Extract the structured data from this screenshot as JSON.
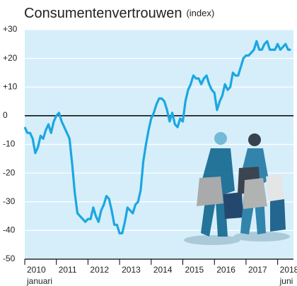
{
  "chart_data": {
    "type": "line",
    "title": "Consumentenvertrouwen",
    "subtitle": "(index)",
    "annotations": [
      "januari",
      "juni"
    ],
    "x": [
      2010,
      2010.083,
      2010.167,
      2010.25,
      2010.333,
      2010.417,
      2010.5,
      2010.583,
      2010.667,
      2010.75,
      2010.833,
      2010.917,
      2011,
      2011.083,
      2011.167,
      2011.25,
      2011.333,
      2011.417,
      2011.5,
      2011.583,
      2011.667,
      2011.75,
      2011.833,
      2011.917,
      2012,
      2012.083,
      2012.167,
      2012.25,
      2012.333,
      2012.417,
      2012.5,
      2012.583,
      2012.667,
      2012.75,
      2012.833,
      2012.917,
      2013,
      2013.083,
      2013.167,
      2013.25,
      2013.333,
      2013.417,
      2013.5,
      2013.583,
      2013.667,
      2013.75,
      2013.833,
      2013.917,
      2014,
      2014.083,
      2014.167,
      2014.25,
      2014.333,
      2014.417,
      2014.5,
      2014.583,
      2014.667,
      2014.75,
      2014.833,
      2014.917,
      2015,
      2015.083,
      2015.167,
      2015.25,
      2015.333,
      2015.417,
      2015.5,
      2015.583,
      2015.667,
      2015.75,
      2015.833,
      2015.917,
      2016,
      2016.083,
      2016.167,
      2016.25,
      2016.333,
      2016.417,
      2016.5,
      2016.583,
      2016.667,
      2016.75,
      2016.833,
      2016.917,
      2017,
      2017.083,
      2017.167,
      2017.25,
      2017.333,
      2017.417,
      2017.5,
      2017.583,
      2017.667,
      2017.75,
      2017.833,
      2017.917,
      2018,
      2018.083,
      2018.167,
      2018.25,
      2018.333,
      2018.417
    ],
    "series": [
      {
        "name": "Consumentenvertrouwen",
        "color": "#1ba7e1",
        "values": [
          -4,
          -6,
          -6,
          -8,
          -13,
          -11,
          -7,
          -8,
          -5,
          -3,
          -6,
          -2,
          0,
          1,
          -2,
          -4,
          -6,
          -8,
          -17,
          -27,
          -34,
          -35,
          -36,
          -37,
          -36,
          -36,
          -32,
          -35,
          -37,
          -33,
          -31,
          -28,
          -29,
          -33,
          -38,
          -38,
          -41,
          -41,
          -37,
          -32,
          -33,
          -34,
          -31,
          -30,
          -26,
          -16,
          -10,
          -5,
          -1,
          1,
          4,
          6,
          6,
          5,
          2,
          -2,
          1,
          -3,
          -4,
          -1,
          -2,
          5,
          9,
          11,
          14,
          13,
          13,
          11,
          13,
          14,
          11,
          9,
          8,
          2,
          5,
          7,
          11,
          9,
          10,
          15,
          14,
          14,
          17,
          20,
          21,
          21,
          22,
          23,
          26,
          23,
          23,
          25,
          26,
          23,
          23,
          23,
          25,
          23,
          24,
          25,
          23,
          23
        ]
      }
    ],
    "xlim": [
      2010,
      2018.5
    ],
    "xticks": [
      2010,
      2011,
      2012,
      2013,
      2014,
      2015,
      2016,
      2017,
      2018
    ],
    "ylim": [
      -50,
      30
    ],
    "yticks": [
      {
        "value": 30,
        "label": "+30"
      },
      {
        "value": 20,
        "label": "+20"
      },
      {
        "value": 10,
        "label": "+10"
      },
      0,
      -10,
      -20,
      -30,
      -40,
      -50
    ],
    "grid": true
  }
}
